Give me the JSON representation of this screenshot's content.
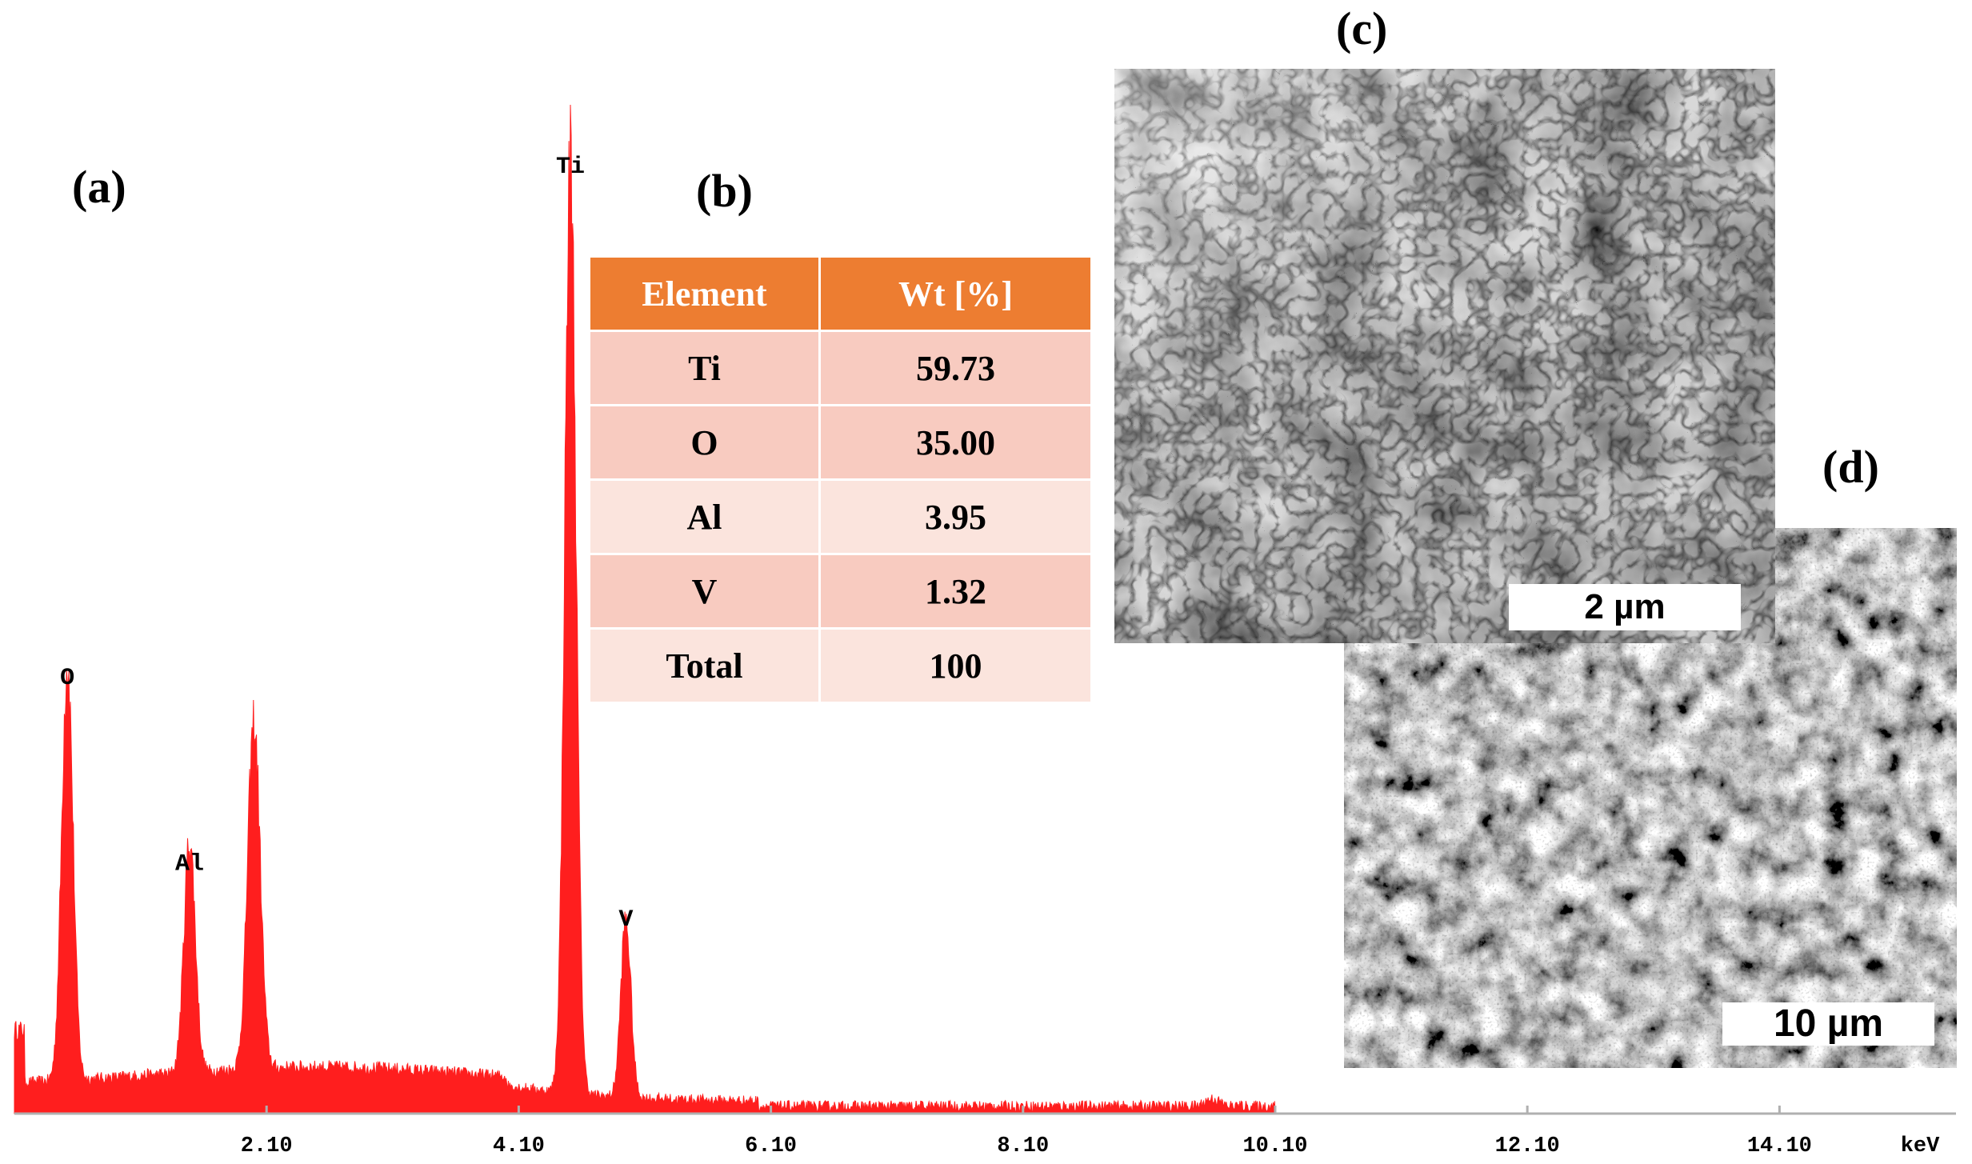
{
  "panels": {
    "a": "(a)",
    "b": "(b)",
    "c": "(c)",
    "d": "(d)"
  },
  "chart_data": {
    "type": "line",
    "title": "",
    "xlabel": "keV",
    "ylabel": "",
    "xlim": [
      0.1,
      15.5
    ],
    "ylim": [
      0,
      1.0
    ],
    "x_ticks": [
      "2.10",
      "4.10",
      "6.10",
      "8.10",
      "10.10",
      "12.10",
      "14.10"
    ],
    "x_tick_values": [
      2.1,
      4.1,
      6.1,
      8.1,
      10.1,
      12.1,
      14.1
    ],
    "series_color": "#ff1e1e",
    "peaks": [
      {
        "label": "O",
        "x": 0.52,
        "y": 0.45
      },
      {
        "label": "Al",
        "x": 1.49,
        "y": 0.25
      },
      {
        "label": "",
        "x": 2.0,
        "y": 0.37
      },
      {
        "label": "Ti",
        "x": 4.51,
        "y": 1.0
      },
      {
        "label": "V",
        "x": 4.95,
        "y": 0.19
      }
    ],
    "spectrum_end": 10.1
  },
  "table": {
    "headers": [
      "Element",
      "Wt [%]"
    ],
    "rows": [
      [
        "Ti",
        "59.73"
      ],
      [
        "O",
        "35.00"
      ],
      [
        "Al",
        "3.95"
      ],
      [
        "V",
        "1.32"
      ],
      [
        "Total",
        "100"
      ]
    ],
    "header_color": "#ed7d31"
  },
  "sem_images": {
    "c_scale": "2 µm",
    "d_scale": "10 µm"
  }
}
